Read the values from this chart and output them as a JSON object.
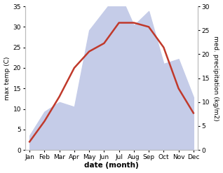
{
  "months": [
    "Jan",
    "Feb",
    "Mar",
    "Apr",
    "May",
    "Jun",
    "Jul",
    "Aug",
    "Sep",
    "Oct",
    "Nov",
    "Dec"
  ],
  "x": [
    0,
    1,
    2,
    3,
    4,
    5,
    6,
    7,
    8,
    9,
    10,
    11
  ],
  "temperature": [
    2,
    7,
    13,
    20,
    24,
    26,
    31,
    31,
    30,
    25,
    15,
    9
  ],
  "precipitation": [
    3,
    8,
    10,
    9,
    25,
    29,
    33,
    26,
    29,
    18,
    19,
    11
  ],
  "temp_color": "#c0392b",
  "precip_color": "#c5cce8",
  "temp_ylim": [
    0,
    35
  ],
  "precip_ylim": [
    0,
    30
  ],
  "temp_yticks": [
    0,
    5,
    10,
    15,
    20,
    25,
    30,
    35
  ],
  "precip_yticks": [
    0,
    5,
    10,
    15,
    20,
    25,
    30
  ],
  "ylabel_left": "max temp (C)",
  "ylabel_right": "med. precipitation (kg/m2)",
  "xlabel": "date (month)",
  "background_color": "#ffffff",
  "line_width": 1.8
}
